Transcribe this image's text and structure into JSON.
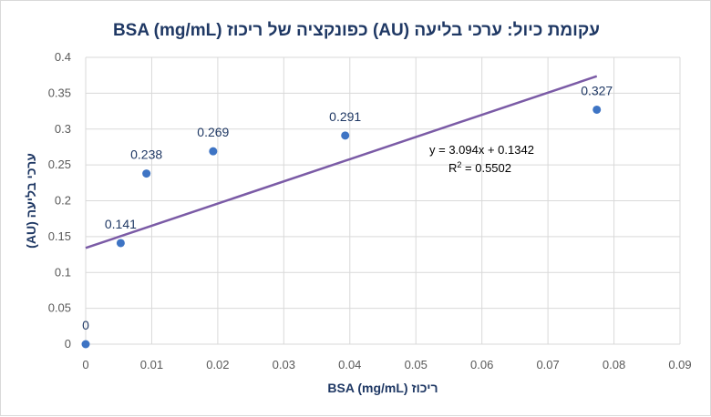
{
  "chart_data": {
    "type": "scatter",
    "title": "עקומת כיול: ערכי בליעה (AU) כפונקציה של ריכוז BSA (mg/mL)",
    "xlabel": "ריכוז BSA (mg/mL)",
    "ylabel": "ערכי בליעה (AU)",
    "xlim": [
      0,
      0.09
    ],
    "ylim": [
      0,
      0.4
    ],
    "x_ticks": [
      "0",
      "0.01",
      "0.02",
      "0.03",
      "0.04",
      "0.05",
      "0.06",
      "0.07",
      "0.08",
      "0.09"
    ],
    "y_ticks": [
      "0",
      "0.05",
      "0.1",
      "0.15",
      "0.2",
      "0.25",
      "0.3",
      "0.35",
      "0.4"
    ],
    "grid": true,
    "points": [
      {
        "x": 0,
        "y": 0,
        "label": "0"
      },
      {
        "x": 0.0053,
        "y": 0.141,
        "label": "0.141"
      },
      {
        "x": 0.0092,
        "y": 0.238,
        "label": "0.238"
      },
      {
        "x": 0.0193,
        "y": 0.269,
        "label": "0.269"
      },
      {
        "x": 0.0393,
        "y": 0.291,
        "label": "0.291"
      },
      {
        "x": 0.0774,
        "y": 0.327,
        "label": "0.327"
      }
    ],
    "trendline": {
      "slope": 3.094,
      "intercept": 0.1342,
      "x_range": [
        0,
        0.0774
      ],
      "equation": "y = 3.094x + 0.1342",
      "r2_prefix": "R",
      "r2_exp": "2",
      "r2_value": " = 0.5502",
      "color": "#7b5ba6"
    },
    "point_color": "#3e74c4",
    "label_color": "#1f3864"
  }
}
